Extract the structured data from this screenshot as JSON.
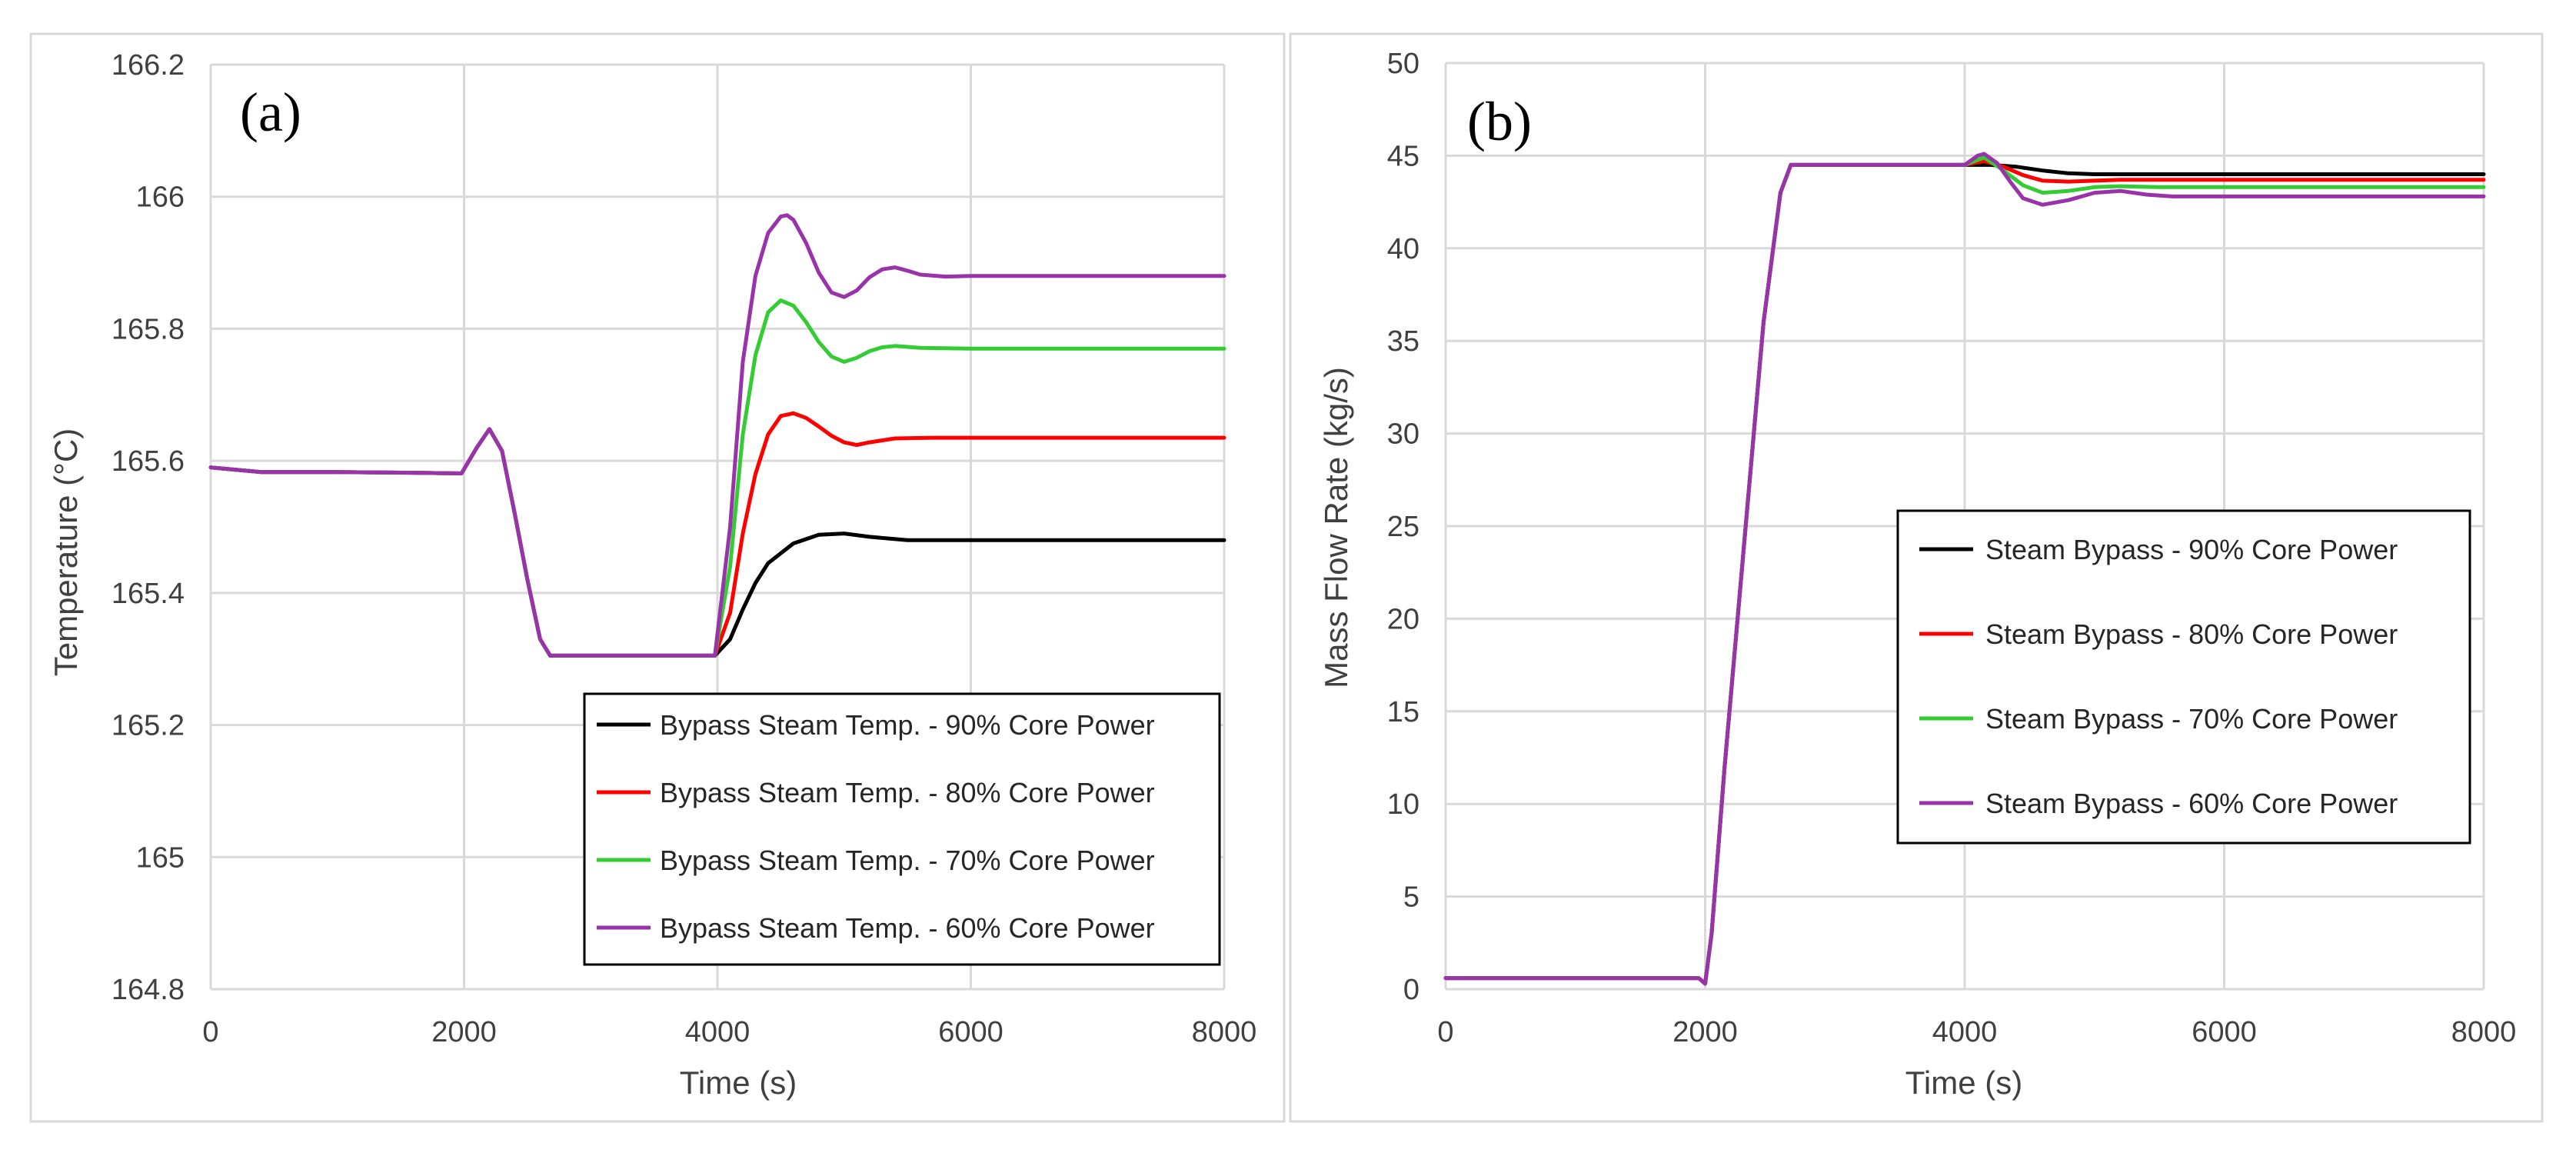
{
  "chart_data": [
    {
      "type": "line",
      "panel_label": "(a)",
      "title": "",
      "xlabel": "Time (s)",
      "ylabel": "Temperature (°C)",
      "xlim": [
        0,
        8000
      ],
      "ylim": [
        164.8,
        166.2
      ],
      "xticks": [
        0,
        2000,
        4000,
        6000,
        8000
      ],
      "xtick_labels": [
        "0",
        "2000",
        "4000",
        "6000",
        "8000"
      ],
      "yticks": [
        164.8,
        165,
        165.2,
        165.4,
        165.6,
        165.8,
        166,
        166.2
      ],
      "ytick_labels": [
        "164.8",
        "165",
        "165.2",
        "165.4",
        "165.6",
        "165.8",
        "166",
        "166.2"
      ],
      "grid": true,
      "legend_position": "lower-right",
      "series": [
        {
          "name": "Bypass Steam Temp. - 90% Core Power",
          "color": "#000000",
          "x": [
            0,
            400,
            1000,
            1600,
            1980,
            2100,
            2200,
            2300,
            2400,
            2500,
            2600,
            2680,
            3000,
            3500,
            3980,
            4100,
            4200,
            4300,
            4400,
            4600,
            4800,
            5000,
            5200,
            5500,
            6000,
            7000,
            8000
          ],
          "y": [
            165.59,
            165.583,
            165.583,
            165.582,
            165.581,
            165.62,
            165.648,
            165.615,
            165.52,
            165.42,
            165.33,
            165.305,
            165.305,
            165.305,
            165.305,
            165.33,
            165.375,
            165.415,
            165.445,
            165.475,
            165.488,
            165.49,
            165.485,
            165.48,
            165.48,
            165.48,
            165.48
          ]
        },
        {
          "name": "Bypass Steam Temp. - 80% Core Power",
          "color": "#ff0000",
          "x": [
            0,
            400,
            1000,
            1600,
            1980,
            2100,
            2200,
            2300,
            2400,
            2500,
            2600,
            2680,
            3000,
            3500,
            3980,
            4100,
            4200,
            4300,
            4400,
            4500,
            4600,
            4700,
            4800,
            4900,
            5000,
            5100,
            5200,
            5400,
            5700,
            6000,
            7000,
            8000
          ],
          "y": [
            165.59,
            165.583,
            165.583,
            165.582,
            165.581,
            165.62,
            165.648,
            165.615,
            165.52,
            165.42,
            165.33,
            165.305,
            165.305,
            165.305,
            165.305,
            165.37,
            165.49,
            165.58,
            165.64,
            165.668,
            165.672,
            165.665,
            165.652,
            165.638,
            165.628,
            165.624,
            165.628,
            165.634,
            165.635,
            165.635,
            165.635,
            165.635
          ]
        },
        {
          "name": "Bypass Steam Temp. - 70% Core Power",
          "color": "#33cc33",
          "x": [
            0,
            400,
            1000,
            1600,
            1980,
            2100,
            2200,
            2300,
            2400,
            2500,
            2600,
            2680,
            3000,
            3500,
            3980,
            4100,
            4200,
            4300,
            4400,
            4500,
            4600,
            4700,
            4800,
            4900,
            5000,
            5100,
            5200,
            5300,
            5400,
            5600,
            6000,
            7000,
            8000
          ],
          "y": [
            165.59,
            165.583,
            165.583,
            165.582,
            165.581,
            165.62,
            165.648,
            165.615,
            165.52,
            165.42,
            165.33,
            165.305,
            165.305,
            165.305,
            165.305,
            165.44,
            165.64,
            165.76,
            165.825,
            165.843,
            165.835,
            165.81,
            165.78,
            165.758,
            165.75,
            165.756,
            165.766,
            165.772,
            165.774,
            165.771,
            165.77,
            165.77,
            165.77
          ]
        },
        {
          "name": "Bypass Steam Temp. - 60% Core Power",
          "color": "#9933aa",
          "x": [
            0,
            400,
            1000,
            1600,
            1980,
            2100,
            2200,
            2300,
            2400,
            2500,
            2600,
            2680,
            3000,
            3500,
            3980,
            4100,
            4200,
            4300,
            4400,
            4500,
            4550,
            4600,
            4700,
            4800,
            4900,
            5000,
            5100,
            5200,
            5300,
            5400,
            5500,
            5600,
            5800,
            6000,
            7000,
            8000
          ],
          "y": [
            165.59,
            165.583,
            165.583,
            165.582,
            165.581,
            165.62,
            165.648,
            165.615,
            165.52,
            165.42,
            165.33,
            165.305,
            165.305,
            165.305,
            165.305,
            165.5,
            165.75,
            165.88,
            165.945,
            165.97,
            165.972,
            165.965,
            165.93,
            165.885,
            165.855,
            165.848,
            165.858,
            165.878,
            165.89,
            165.893,
            165.888,
            165.882,
            165.879,
            165.88,
            165.88,
            165.88
          ]
        }
      ]
    },
    {
      "type": "line",
      "panel_label": "(b)",
      "title": "",
      "xlabel": "Time (s)",
      "ylabel": "Mass Flow Rate (kg/s)",
      "xlim": [
        0,
        8000
      ],
      "ylim": [
        0,
        50
      ],
      "xticks": [
        0,
        2000,
        4000,
        6000,
        8000
      ],
      "xtick_labels": [
        "0",
        "2000",
        "4000",
        "6000",
        "8000"
      ],
      "yticks": [
        0,
        5,
        10,
        15,
        20,
        25,
        30,
        35,
        40,
        45,
        50
      ],
      "ytick_labels": [
        "0",
        "5",
        "10",
        "15",
        "20",
        "25",
        "30",
        "35",
        "40",
        "45",
        "50"
      ],
      "grid": true,
      "legend_position": "center-right",
      "series": [
        {
          "name": "Steam Bypass - 90% Core Power",
          "color": "#000000",
          "x": [
            0,
            1000,
            1950,
            2000,
            2050,
            2150,
            2300,
            2450,
            2580,
            2660,
            2720,
            3000,
            3500,
            4000,
            4200,
            4400,
            4600,
            4800,
            5000,
            5500,
            6000,
            7000,
            8000
          ],
          "y": [
            0.6,
            0.6,
            0.6,
            0.3,
            3,
            12,
            24,
            36,
            43,
            44.5,
            44.5,
            44.5,
            44.5,
            44.5,
            44.5,
            44.4,
            44.2,
            44.05,
            44,
            44,
            44,
            44,
            44
          ]
        },
        {
          "name": "Steam Bypass - 80% Core Power",
          "color": "#ff0000",
          "x": [
            0,
            1000,
            1950,
            2000,
            2050,
            2150,
            2300,
            2450,
            2580,
            2660,
            2720,
            3000,
            3500,
            4000,
            4150,
            4300,
            4450,
            4600,
            4800,
            5000,
            5200,
            5500,
            6000,
            7000,
            8000
          ],
          "y": [
            0.6,
            0.6,
            0.6,
            0.3,
            3,
            12,
            24,
            36,
            43,
            44.5,
            44.5,
            44.5,
            44.5,
            44.5,
            44.7,
            44.4,
            43.95,
            43.65,
            43.6,
            43.65,
            43.7,
            43.7,
            43.7,
            43.7,
            43.7
          ]
        },
        {
          "name": "Steam Bypass - 70% Core Power",
          "color": "#33cc33",
          "x": [
            0,
            1000,
            1950,
            2000,
            2050,
            2150,
            2300,
            2450,
            2580,
            2660,
            2720,
            3000,
            3500,
            4000,
            4150,
            4300,
            4450,
            4600,
            4800,
            5000,
            5200,
            5500,
            6000,
            7000,
            8000
          ],
          "y": [
            0.6,
            0.6,
            0.6,
            0.3,
            3,
            12,
            24,
            36,
            43,
            44.5,
            44.5,
            44.5,
            44.5,
            44.5,
            44.9,
            44.2,
            43.4,
            43.0,
            43.1,
            43.3,
            43.35,
            43.3,
            43.3,
            43.3,
            43.3
          ]
        },
        {
          "name": "Steam Bypass - 60% Core Power",
          "color": "#9933aa",
          "x": [
            0,
            1000,
            1950,
            2000,
            2050,
            2150,
            2300,
            2450,
            2580,
            2660,
            2720,
            3000,
            3500,
            4000,
            4100,
            4150,
            4250,
            4350,
            4450,
            4600,
            4800,
            5000,
            5200,
            5400,
            5600,
            6000,
            7000,
            8000
          ],
          "y": [
            0.6,
            0.6,
            0.6,
            0.3,
            3,
            12,
            24,
            36,
            43,
            44.5,
            44.5,
            44.5,
            44.5,
            44.5,
            45.0,
            45.1,
            44.6,
            43.6,
            42.7,
            42.35,
            42.6,
            43.0,
            43.1,
            42.9,
            42.8,
            42.8,
            42.8,
            42.8
          ]
        }
      ]
    }
  ]
}
